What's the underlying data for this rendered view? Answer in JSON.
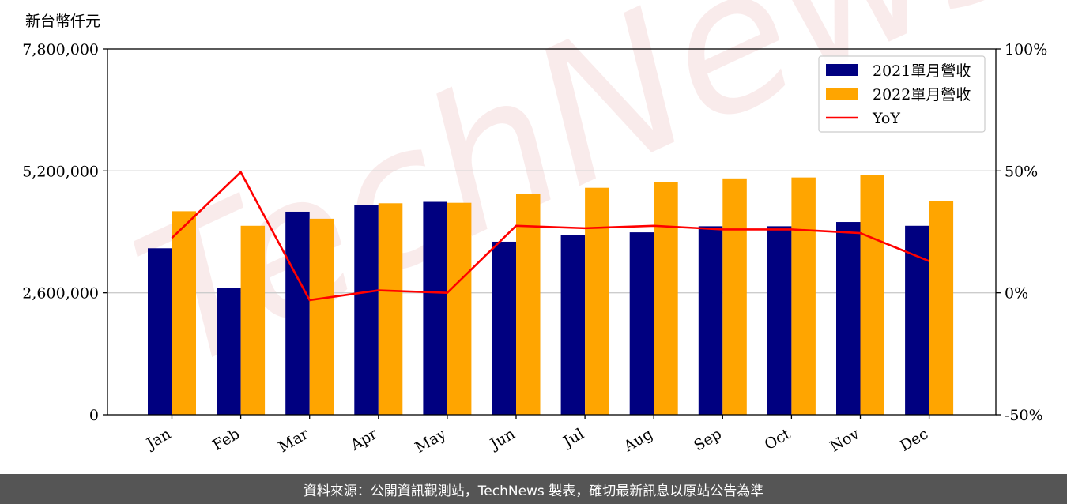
{
  "chart_data": {
    "type": "bar",
    "title": "",
    "ylabel": "新台幣仟元",
    "categories": [
      "Jan",
      "Feb",
      "Mar",
      "Apr",
      "May",
      "Jun",
      "Jul",
      "Aug",
      "Sep",
      "Oct",
      "Nov",
      "Dec"
    ],
    "series": [
      {
        "name": "2021單月營收",
        "type": "bar",
        "color": "#000080",
        "values": [
          3550000,
          2700000,
          4330000,
          4480000,
          4540000,
          3690000,
          3830000,
          3890000,
          4020000,
          4020000,
          4110000,
          4030000
        ]
      },
      {
        "name": "2022單月營收",
        "type": "bar",
        "color": "#FFA500",
        "values": [
          4340000,
          4030000,
          4180000,
          4510000,
          4520000,
          4710000,
          4840000,
          4960000,
          5040000,
          5060000,
          5120000,
          4550000
        ]
      },
      {
        "name": "YoY",
        "type": "line",
        "axis": "right",
        "color": "#FF0000",
        "values": [
          22.5,
          49.5,
          -3,
          1,
          0,
          27.5,
          26.5,
          27.5,
          26,
          26,
          24.5,
          13
        ]
      }
    ],
    "ylim": [
      0,
      7800000
    ],
    "yticks": [
      "0",
      "2,600,000",
      "5,200,000",
      "7,800,000"
    ],
    "y2lim": [
      -50,
      100
    ],
    "y2ticks": [
      "-50%",
      "0%",
      "50%",
      "100%"
    ],
    "grid": "horizontal",
    "legend_position": "top-right",
    "watermark": "TechNews"
  },
  "footer": {
    "text": "資料來源：公開資訊觀測站，TechNews 製表，確切最新訊息以原站公告為準"
  }
}
